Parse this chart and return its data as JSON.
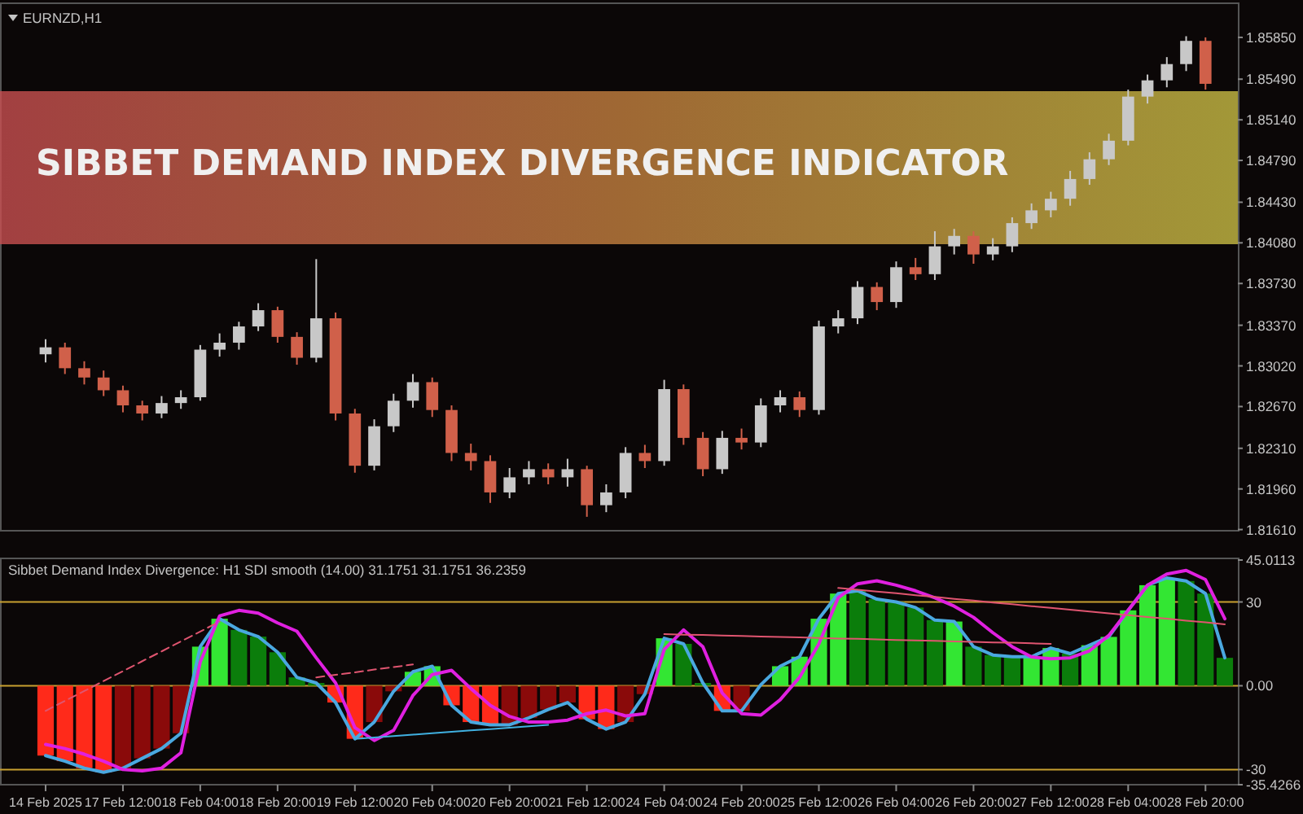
{
  "chart_data": [
    {
      "type": "candlestick",
      "title": "SIBBET DEMAND INDEX DIVERGENCE INDICATOR",
      "subtitle": "EURNZD,H1",
      "ylim": [
        1.816,
        1.8613
      ],
      "tick_labels": "y",
      "categories": [
        null,
        null,
        null,
        null,
        null,
        null,
        null,
        null,
        null,
        null,
        null,
        null,
        null,
        null,
        null,
        null,
        null,
        null,
        null,
        null,
        null,
        null,
        null,
        null,
        null,
        null,
        null,
        null,
        null,
        null,
        null,
        null,
        null,
        null,
        null,
        null,
        null,
        null,
        null,
        null,
        null,
        null,
        null,
        null,
        null,
        null,
        null,
        null,
        null,
        null,
        null,
        null,
        null,
        null,
        null,
        null,
        null,
        null,
        null,
        null,
        null
      ],
      "yticks": [
        {
          "value": 1.8161,
          "label": "1.81610"
        },
        {
          "value": 1.8196,
          "label": "1.81960"
        },
        {
          "value": 1.8231,
          "label": "1.82310"
        },
        {
          "value": 1.8267,
          "label": "1.82670"
        },
        {
          "value": 1.8302,
          "label": "1.83020"
        },
        {
          "value": 1.8337,
          "label": "1.83370"
        },
        {
          "value": 1.8373,
          "label": "1.83730"
        },
        {
          "value": 1.8408,
          "label": "1.84080"
        },
        {
          "value": 1.8443,
          "label": "1.84430"
        },
        {
          "value": 1.8479,
          "label": "1.84790"
        },
        {
          "value": 1.8514,
          "label": "1.85140"
        },
        {
          "value": 1.8549,
          "label": "1.85490"
        },
        {
          "value": 1.8585,
          "label": "1.85850"
        }
      ],
      "colors": [
        "#c8c8c8",
        "#d0604a",
        "#d0604a",
        "#d0604a",
        "#d0604a",
        "#d0604a",
        "#c8c8c8",
        "#c8c8c8",
        "#c8c8c8",
        "#c8c8c8",
        "#c8c8c8",
        "#c8c8c8",
        "#d0604a",
        "#d0604a",
        "#c8c8c8",
        "#d0604a",
        "#d0604a",
        "#c8c8c8",
        "#c8c8c8",
        "#c8c8c8",
        "#d0604a",
        "#d0604a",
        "#d0604a",
        "#d0604a",
        "#c8c8c8",
        "#c8c8c8",
        "#d0604a",
        "#c8c8c8",
        "#d0604a",
        "#c8c8c8",
        "#c8c8c8",
        "#d0604a",
        "#c8c8c8",
        "#d0604a",
        "#d0604a",
        "#c8c8c8",
        "#d0604a",
        "#c8c8c8",
        "#c8c8c8",
        "#d0604a",
        "#c8c8c8",
        "#c8c8c8",
        "#c8c8c8",
        "#d0604a",
        "#c8c8c8",
        "#d0604a",
        "#c8c8c8",
        "#c8c8c8",
        "#d0604a",
        "#c8c8c8",
        "#c8c8c8",
        "#c8c8c8",
        "#c8c8c8",
        "#c8c8c8",
        "#c8c8c8",
        "#c8c8c8",
        "#c8c8c8",
        "#c8c8c8",
        "#c8c8c8",
        "#c8c8c8",
        "#d0604a"
      ],
      "ohlc": [
        [
          1.8312,
          1.8325,
          1.8305,
          1.8318
        ],
        [
          1.8318,
          1.8322,
          1.8295,
          1.83
        ],
        [
          1.83,
          1.8306,
          1.8286,
          1.8292
        ],
        [
          1.8292,
          1.8298,
          1.8276,
          1.8281
        ],
        [
          1.8281,
          1.8285,
          1.8262,
          1.8268
        ],
        [
          1.8268,
          1.8272,
          1.8255,
          1.8261
        ],
        [
          1.8261,
          1.8276,
          1.8257,
          1.827
        ],
        [
          1.827,
          1.8281,
          1.8265,
          1.8275
        ],
        [
          1.8275,
          1.832,
          1.8272,
          1.8316
        ],
        [
          1.8316,
          1.833,
          1.831,
          1.8322
        ],
        [
          1.8322,
          1.834,
          1.8316,
          1.8336
        ],
        [
          1.8336,
          1.8356,
          1.8332,
          1.835
        ],
        [
          1.835,
          1.8353,
          1.8322,
          1.8327
        ],
        [
          1.8327,
          1.8331,
          1.8303,
          1.8309
        ],
        [
          1.8309,
          1.8394,
          1.8305,
          1.8343
        ],
        [
          1.8343,
          1.8348,
          1.8255,
          1.8261
        ],
        [
          1.8261,
          1.8265,
          1.821,
          1.8216
        ],
        [
          1.8216,
          1.8256,
          1.8212,
          1.825
        ],
        [
          1.825,
          1.8278,
          1.8245,
          1.8272
        ],
        [
          1.8272,
          1.8295,
          1.8266,
          1.8288
        ],
        [
          1.8288,
          1.8292,
          1.8258,
          1.8264
        ],
        [
          1.8264,
          1.8268,
          1.822,
          1.8227
        ],
        [
          1.8227,
          1.8235,
          1.8212,
          1.822
        ],
        [
          1.822,
          1.8225,
          1.8184,
          1.8193
        ],
        [
          1.8193,
          1.8214,
          1.8188,
          1.8206
        ],
        [
          1.8206,
          1.822,
          1.82,
          1.8213
        ],
        [
          1.8213,
          1.8218,
          1.82,
          1.8206
        ],
        [
          1.8206,
          1.8222,
          1.8198,
          1.8213
        ],
        [
          1.8213,
          1.8216,
          1.8172,
          1.8182
        ],
        [
          1.8182,
          1.82,
          1.8176,
          1.8193
        ],
        [
          1.8193,
          1.8232,
          1.8188,
          1.8227
        ],
        [
          1.8227,
          1.8234,
          1.8214,
          1.822
        ],
        [
          1.822,
          1.829,
          1.8216,
          1.8282
        ],
        [
          1.8282,
          1.8286,
          1.8234,
          1.824
        ],
        [
          1.824,
          1.8245,
          1.8207,
          1.8213
        ],
        [
          1.8213,
          1.8246,
          1.8209,
          1.824
        ],
        [
          1.824,
          1.8248,
          1.823,
          1.8236
        ],
        [
          1.8236,
          1.8274,
          1.8232,
          1.8268
        ],
        [
          1.8268,
          1.8281,
          1.8262,
          1.8275
        ],
        [
          1.8275,
          1.828,
          1.8258,
          1.8264
        ],
        [
          1.8264,
          1.8341,
          1.826,
          1.8336
        ],
        [
          1.8336,
          1.835,
          1.833,
          1.8343
        ],
        [
          1.8343,
          1.8375,
          1.8338,
          1.837
        ],
        [
          1.837,
          1.8374,
          1.835,
          1.8357
        ],
        [
          1.8357,
          1.8392,
          1.8352,
          1.8387
        ],
        [
          1.8387,
          1.8395,
          1.8376,
          1.8381
        ],
        [
          1.8381,
          1.8418,
          1.8376,
          1.8405
        ],
        [
          1.8405,
          1.842,
          1.8398,
          1.8414
        ],
        [
          1.8414,
          1.8418,
          1.839,
          1.8398
        ],
        [
          1.8398,
          1.8412,
          1.8393,
          1.8405
        ],
        [
          1.8405,
          1.843,
          1.84,
          1.8425
        ],
        [
          1.8425,
          1.8442,
          1.842,
          1.8436
        ],
        [
          1.8436,
          1.8452,
          1.843,
          1.8446
        ],
        [
          1.8446,
          1.847,
          1.844,
          1.8463
        ],
        [
          1.8463,
          1.8486,
          1.8458,
          1.848
        ],
        [
          1.848,
          1.8502,
          1.8475,
          1.8496
        ],
        [
          1.8496,
          1.854,
          1.8492,
          1.8534
        ],
        [
          1.8534,
          1.8553,
          1.8528,
          1.8548
        ],
        [
          1.8548,
          1.8568,
          1.8542,
          1.8562
        ],
        [
          1.8562,
          1.8586,
          1.8556,
          1.8582
        ],
        [
          1.8582,
          1.8585,
          1.854,
          1.8545
        ]
      ]
    },
    {
      "type": "bar",
      "title": "Sibbet Demand Index Divergence: H1 SDI smooth (14.00) 31.1751 31.1751 36.2359",
      "ylim": [
        -35.4266,
        45.0113
      ],
      "categories": [
        "14 Feb 2025",
        null,
        null,
        null,
        "17 Feb 12:00",
        null,
        null,
        null,
        "18 Feb 04:00",
        null,
        null,
        null,
        "18 Feb 20:00",
        null,
        null,
        null,
        "19 Feb 12:00",
        null,
        null,
        null,
        "20 Feb 04:00",
        null,
        null,
        null,
        "20 Feb 20:00",
        null,
        null,
        null,
        "21 Feb 12:00",
        null,
        null,
        null,
        "24 Feb 04:00",
        null,
        null,
        null,
        "24 Feb 20:00",
        null,
        null,
        null,
        "25 Feb 12:00",
        null,
        null,
        null,
        "26 Feb 04:00",
        null,
        null,
        null,
        "26 Feb 20:00",
        null,
        null,
        null,
        "27 Feb 12:00",
        null,
        null,
        null,
        "28 Feb 04:00",
        null,
        null,
        null,
        "28 Feb 20:00",
        null
      ],
      "yticks": [
        45.0113,
        30,
        {
          "value": 0,
          "label": "0.00"
        },
        -30,
        -35.4266
      ],
      "ref_lines": [
        {
          "axis": "y",
          "value": 30,
          "color": "#c8a030"
        },
        {
          "axis": "y",
          "value": 0,
          "color": "#c8a030"
        },
        {
          "axis": "y",
          "value": -30,
          "color": "#c8a030"
        }
      ],
      "series": [
        {
          "values": [
            -25,
            -27,
            -29.5,
            -31,
            -29.5,
            -26,
            -22.5,
            -17,
            14,
            24,
            20,
            17.6,
            12,
            3,
            1,
            -6,
            -19,
            -13,
            -2,
            5,
            7,
            -7,
            -13,
            -14,
            -14,
            -11.5,
            -8.5,
            -6,
            -12,
            -15.5,
            -13,
            -3,
            17,
            15,
            1,
            -9,
            -9,
            null,
            7,
            10.4,
            24,
            33,
            34,
            31,
            30,
            28,
            23.5,
            23,
            14,
            11,
            10.4,
            10.4,
            13.5,
            11.5,
            14.5,
            17.5,
            27,
            36,
            38.6,
            37.5,
            33,
            10
          ],
          "colors": [
            "#ff2a1a",
            "#ff2a1a",
            "#ff2a1a",
            "#ff2a1a",
            "#8a0a0a",
            "#8a0a0a",
            "#8a0a0a",
            "#8a0a0a",
            "#33e633",
            "#33e633",
            "#0b7d0b",
            "#0b7d0b",
            "#0b7d0b",
            "#0b7d0b",
            "#0b7d0b",
            "#ff2a1a",
            "#ff2a1a",
            "#8a0a0a",
            "#8a0a0a",
            "#33e633",
            "#33e633",
            "#ff2a1a",
            "#ff2a1a",
            "#ff2a1a",
            "#8a0a0a",
            "#8a0a0a",
            "#8a0a0a",
            "#8a0a0a",
            "#ff2a1a",
            "#ff2a1a",
            "#8a0a0a",
            "#8a0a0a",
            "#33e633",
            "#0b7d0b",
            "#0b7d0b",
            "#ff2a1a",
            "#8a0a0a",
            null,
            "#33e633",
            "#33e633",
            "#33e633",
            "#33e633",
            "#0b7d0b",
            "#0b7d0b",
            "#0b7d0b",
            "#0b7d0b",
            "#0b7d0b",
            "#33e633",
            "#0b7d0b",
            "#0b7d0b",
            "#0b7d0b",
            "#33e633",
            "#33e633",
            "#0b7d0b",
            "#33e633",
            "#33e633",
            "#33e633",
            "#33e633",
            "#33e633",
            "#0b7d0b",
            "#0b7d0b",
            "#0b7d0b"
          ]
        },
        {
          "type": "line",
          "color": "#4aa8e0",
          "values": [
            -25,
            -27,
            -29.5,
            -31,
            -29.5,
            -26,
            -22.5,
            -17,
            14,
            24,
            20,
            17.6,
            12,
            3,
            1,
            -6,
            -19,
            -13,
            -2,
            5,
            7,
            -7,
            -13,
            -14,
            -14,
            -11.5,
            -8.5,
            -6,
            -12,
            -15.5,
            -13,
            -3,
            17,
            15,
            1,
            -9,
            -9,
            0.4,
            7,
            10.4,
            24,
            33,
            34,
            31,
            30,
            28,
            23.5,
            23,
            14,
            11,
            10.4,
            10.4,
            13.5,
            11.5,
            14.5,
            17.5,
            27,
            36,
            38.6,
            37.5,
            33,
            10
          ]
        },
        {
          "type": "line",
          "color": "#e020e0",
          "values": [
            -21,
            -22.5,
            -24.5,
            -27,
            -30,
            -30.5,
            -29.5,
            -24,
            8.5,
            25,
            27,
            26,
            22.5,
            19.5,
            10,
            1,
            -15,
            -19.6,
            -16,
            -3.5,
            4,
            5.5,
            -1,
            -7,
            -11,
            -13,
            -13,
            -12.3,
            -10,
            -8.7,
            -10.8,
            -10,
            13,
            20,
            14,
            -2.6,
            -10,
            -10.5,
            -5,
            3,
            15,
            31.5,
            36.5,
            37.6,
            36,
            34,
            31.5,
            28.5,
            24.5,
            19,
            14,
            10.3,
            9.7,
            10,
            12.5,
            18,
            27,
            36,
            40,
            41.3,
            38,
            24
          ]
        },
        {
          "type": "line",
          "color": "#e05570",
          "line_style": "dashed",
          "values": [
            -9,
            -5.4,
            -1.9,
            1.7,
            5.2,
            8.8,
            12.3,
            15.9,
            19.4,
            23,
            null,
            null,
            null,
            null,
            null,
            null,
            null,
            null,
            null,
            null,
            null,
            null,
            null,
            null,
            null,
            null,
            null,
            null,
            null,
            null,
            null,
            null,
            null,
            null,
            null,
            null,
            null,
            null,
            null,
            null,
            null,
            null,
            null,
            null,
            null,
            null,
            null,
            null,
            null,
            null,
            null,
            null,
            null,
            null,
            null,
            null,
            null,
            null,
            null,
            null,
            null,
            null
          ]
        },
        {
          "type": "line",
          "color": "#e05570",
          "line_style": "dashed",
          "values": [
            null,
            null,
            null,
            null,
            null,
            null,
            null,
            null,
            null,
            null,
            null,
            null,
            null,
            null,
            3,
            3.9,
            4.8,
            5.8,
            6.7,
            7.6,
            null,
            null,
            null,
            null,
            null,
            null,
            null,
            null,
            null,
            null,
            null,
            null,
            null,
            null,
            null,
            null,
            null,
            null,
            null,
            null,
            null,
            null,
            null,
            null,
            null,
            null,
            null,
            null,
            null,
            null,
            null,
            null,
            null,
            null,
            null,
            null,
            null,
            null,
            null,
            null,
            null,
            null
          ]
        },
        {
          "type": "line",
          "color": "#40b0e0",
          "values": [
            null,
            null,
            null,
            null,
            null,
            null,
            null,
            null,
            null,
            null,
            null,
            null,
            null,
            null,
            null,
            null,
            -19,
            -18.5,
            -18,
            -17.5,
            -17,
            -16.5,
            -16,
            -15.5,
            -15,
            -14.5,
            -14,
            null,
            null,
            null,
            null,
            null,
            null,
            null,
            null,
            null,
            null,
            null,
            null,
            null,
            null,
            null,
            null,
            null,
            null,
            null,
            null,
            null,
            null,
            null,
            null,
            null,
            null,
            null,
            null,
            null,
            null,
            null,
            null,
            null,
            null,
            null
          ]
        },
        {
          "type": "line",
          "color": "#e05570",
          "values": [
            null,
            null,
            null,
            null,
            null,
            null,
            null,
            null,
            null,
            null,
            null,
            null,
            null,
            null,
            null,
            null,
            null,
            null,
            null,
            null,
            null,
            null,
            null,
            null,
            null,
            null,
            null,
            null,
            null,
            null,
            null,
            null,
            18.5,
            18.3,
            18.2,
            18,
            17.8,
            17.6,
            17.5,
            17.3,
            17.1,
            16.9,
            16.8,
            16.6,
            16.4,
            16.2,
            16.1,
            15.9,
            15.7,
            15.5,
            15.4,
            15.2,
            15,
            null,
            null,
            null,
            null,
            null,
            null,
            null,
            null,
            null
          ]
        },
        {
          "type": "line",
          "color": "#e05570",
          "values": [
            null,
            null,
            null,
            null,
            null,
            null,
            null,
            null,
            null,
            null,
            null,
            null,
            null,
            null,
            null,
            null,
            null,
            null,
            null,
            null,
            null,
            null,
            null,
            null,
            null,
            null,
            null,
            null,
            null,
            null,
            null,
            null,
            null,
            null,
            null,
            null,
            null,
            null,
            null,
            null,
            null,
            35,
            34.4,
            33.7,
            33.1,
            32.4,
            31.8,
            31.1,
            30.5,
            29.8,
            29.2,
            28.5,
            27.9,
            27.2,
            26.6,
            25.9,
            25.3,
            24.6,
            24,
            23.3,
            22.7,
            22
          ]
        }
      ]
    }
  ]
}
